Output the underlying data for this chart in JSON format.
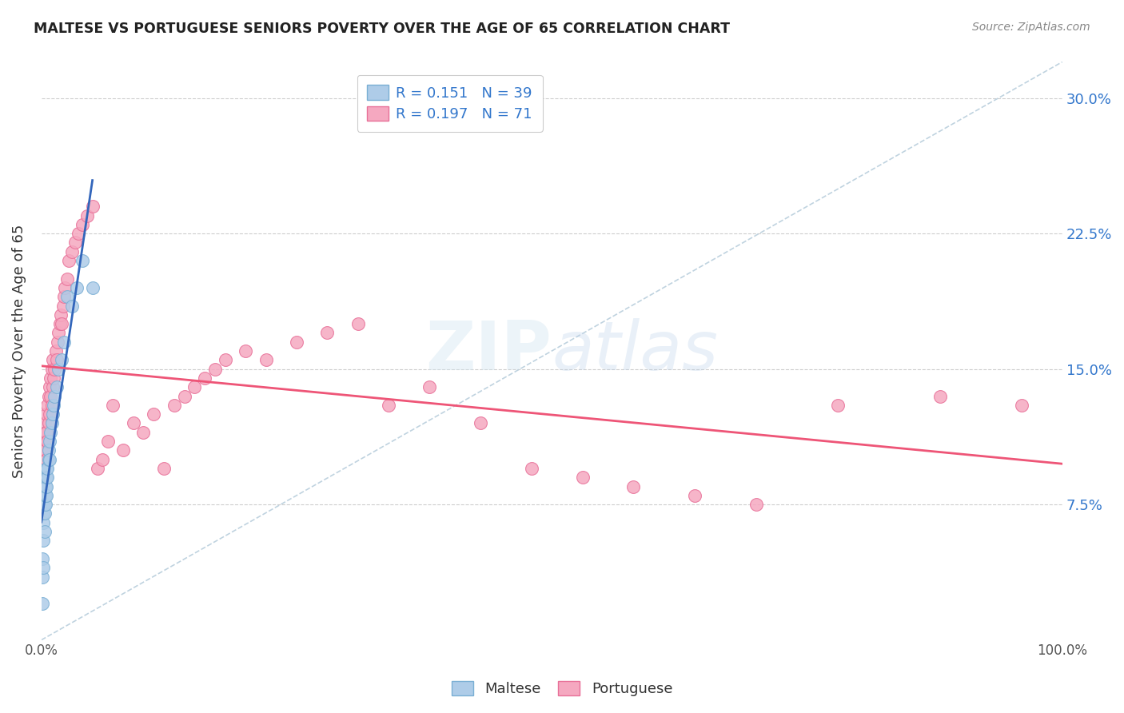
{
  "title": "MALTESE VS PORTUGUESE SENIORS POVERTY OVER THE AGE OF 65 CORRELATION CHART",
  "source": "Source: ZipAtlas.com",
  "ylabel": "Seniors Poverty Over the Age of 65",
  "background_color": "#ffffff",
  "grid_color": "#c8c8c8",
  "maltese_color": "#aecce8",
  "portuguese_color": "#f5a8c0",
  "maltese_edge": "#7aafd4",
  "portuguese_edge": "#e87098",
  "trend_maltese_color": "#3366bb",
  "trend_portuguese_color": "#ee5577",
  "diagonal_color": "#b0c8d8",
  "R_maltese": 0.151,
  "N_maltese": 39,
  "R_portuguese": 0.197,
  "N_portuguese": 71,
  "legend_text_color": "#3377cc",
  "xlim": [
    0.0,
    1.0
  ],
  "ylim": [
    0.0,
    0.32
  ],
  "y_ticks": [
    0.075,
    0.15,
    0.225,
    0.3
  ],
  "maltese_x": [
    0.001,
    0.001,
    0.001,
    0.002,
    0.002,
    0.002,
    0.002,
    0.002,
    0.003,
    0.003,
    0.003,
    0.003,
    0.004,
    0.004,
    0.004,
    0.005,
    0.005,
    0.005,
    0.005,
    0.006,
    0.006,
    0.007,
    0.007,
    0.008,
    0.008,
    0.009,
    0.01,
    0.011,
    0.012,
    0.013,
    0.015,
    0.017,
    0.02,
    0.022,
    0.025,
    0.03,
    0.035,
    0.04,
    0.05
  ],
  "maltese_y": [
    0.02,
    0.035,
    0.045,
    0.04,
    0.055,
    0.065,
    0.07,
    0.075,
    0.06,
    0.07,
    0.075,
    0.08,
    0.075,
    0.08,
    0.085,
    0.08,
    0.085,
    0.09,
    0.095,
    0.09,
    0.095,
    0.1,
    0.105,
    0.1,
    0.11,
    0.115,
    0.12,
    0.125,
    0.13,
    0.135,
    0.14,
    0.15,
    0.155,
    0.165,
    0.19,
    0.185,
    0.195,
    0.21,
    0.195
  ],
  "portuguese_x": [
    0.002,
    0.003,
    0.003,
    0.004,
    0.004,
    0.005,
    0.005,
    0.005,
    0.006,
    0.006,
    0.007,
    0.007,
    0.008,
    0.008,
    0.009,
    0.009,
    0.01,
    0.01,
    0.011,
    0.011,
    0.012,
    0.013,
    0.014,
    0.015,
    0.016,
    0.017,
    0.018,
    0.019,
    0.02,
    0.021,
    0.022,
    0.023,
    0.025,
    0.027,
    0.03,
    0.033,
    0.036,
    0.04,
    0.045,
    0.05,
    0.055,
    0.06,
    0.065,
    0.07,
    0.08,
    0.09,
    0.1,
    0.11,
    0.12,
    0.13,
    0.14,
    0.15,
    0.16,
    0.17,
    0.18,
    0.2,
    0.22,
    0.25,
    0.28,
    0.31,
    0.34,
    0.38,
    0.43,
    0.48,
    0.53,
    0.58,
    0.64,
    0.7,
    0.78,
    0.88,
    0.96
  ],
  "portuguese_y": [
    0.105,
    0.11,
    0.12,
    0.105,
    0.115,
    0.1,
    0.115,
    0.125,
    0.11,
    0.13,
    0.12,
    0.135,
    0.125,
    0.14,
    0.135,
    0.145,
    0.13,
    0.15,
    0.14,
    0.155,
    0.145,
    0.15,
    0.16,
    0.155,
    0.165,
    0.17,
    0.175,
    0.18,
    0.175,
    0.185,
    0.19,
    0.195,
    0.2,
    0.21,
    0.215,
    0.22,
    0.225,
    0.23,
    0.235,
    0.24,
    0.095,
    0.1,
    0.11,
    0.13,
    0.105,
    0.12,
    0.115,
    0.125,
    0.095,
    0.13,
    0.135,
    0.14,
    0.145,
    0.15,
    0.155,
    0.16,
    0.155,
    0.165,
    0.17,
    0.175,
    0.13,
    0.14,
    0.12,
    0.095,
    0.09,
    0.085,
    0.08,
    0.075,
    0.13,
    0.135,
    0.13
  ]
}
